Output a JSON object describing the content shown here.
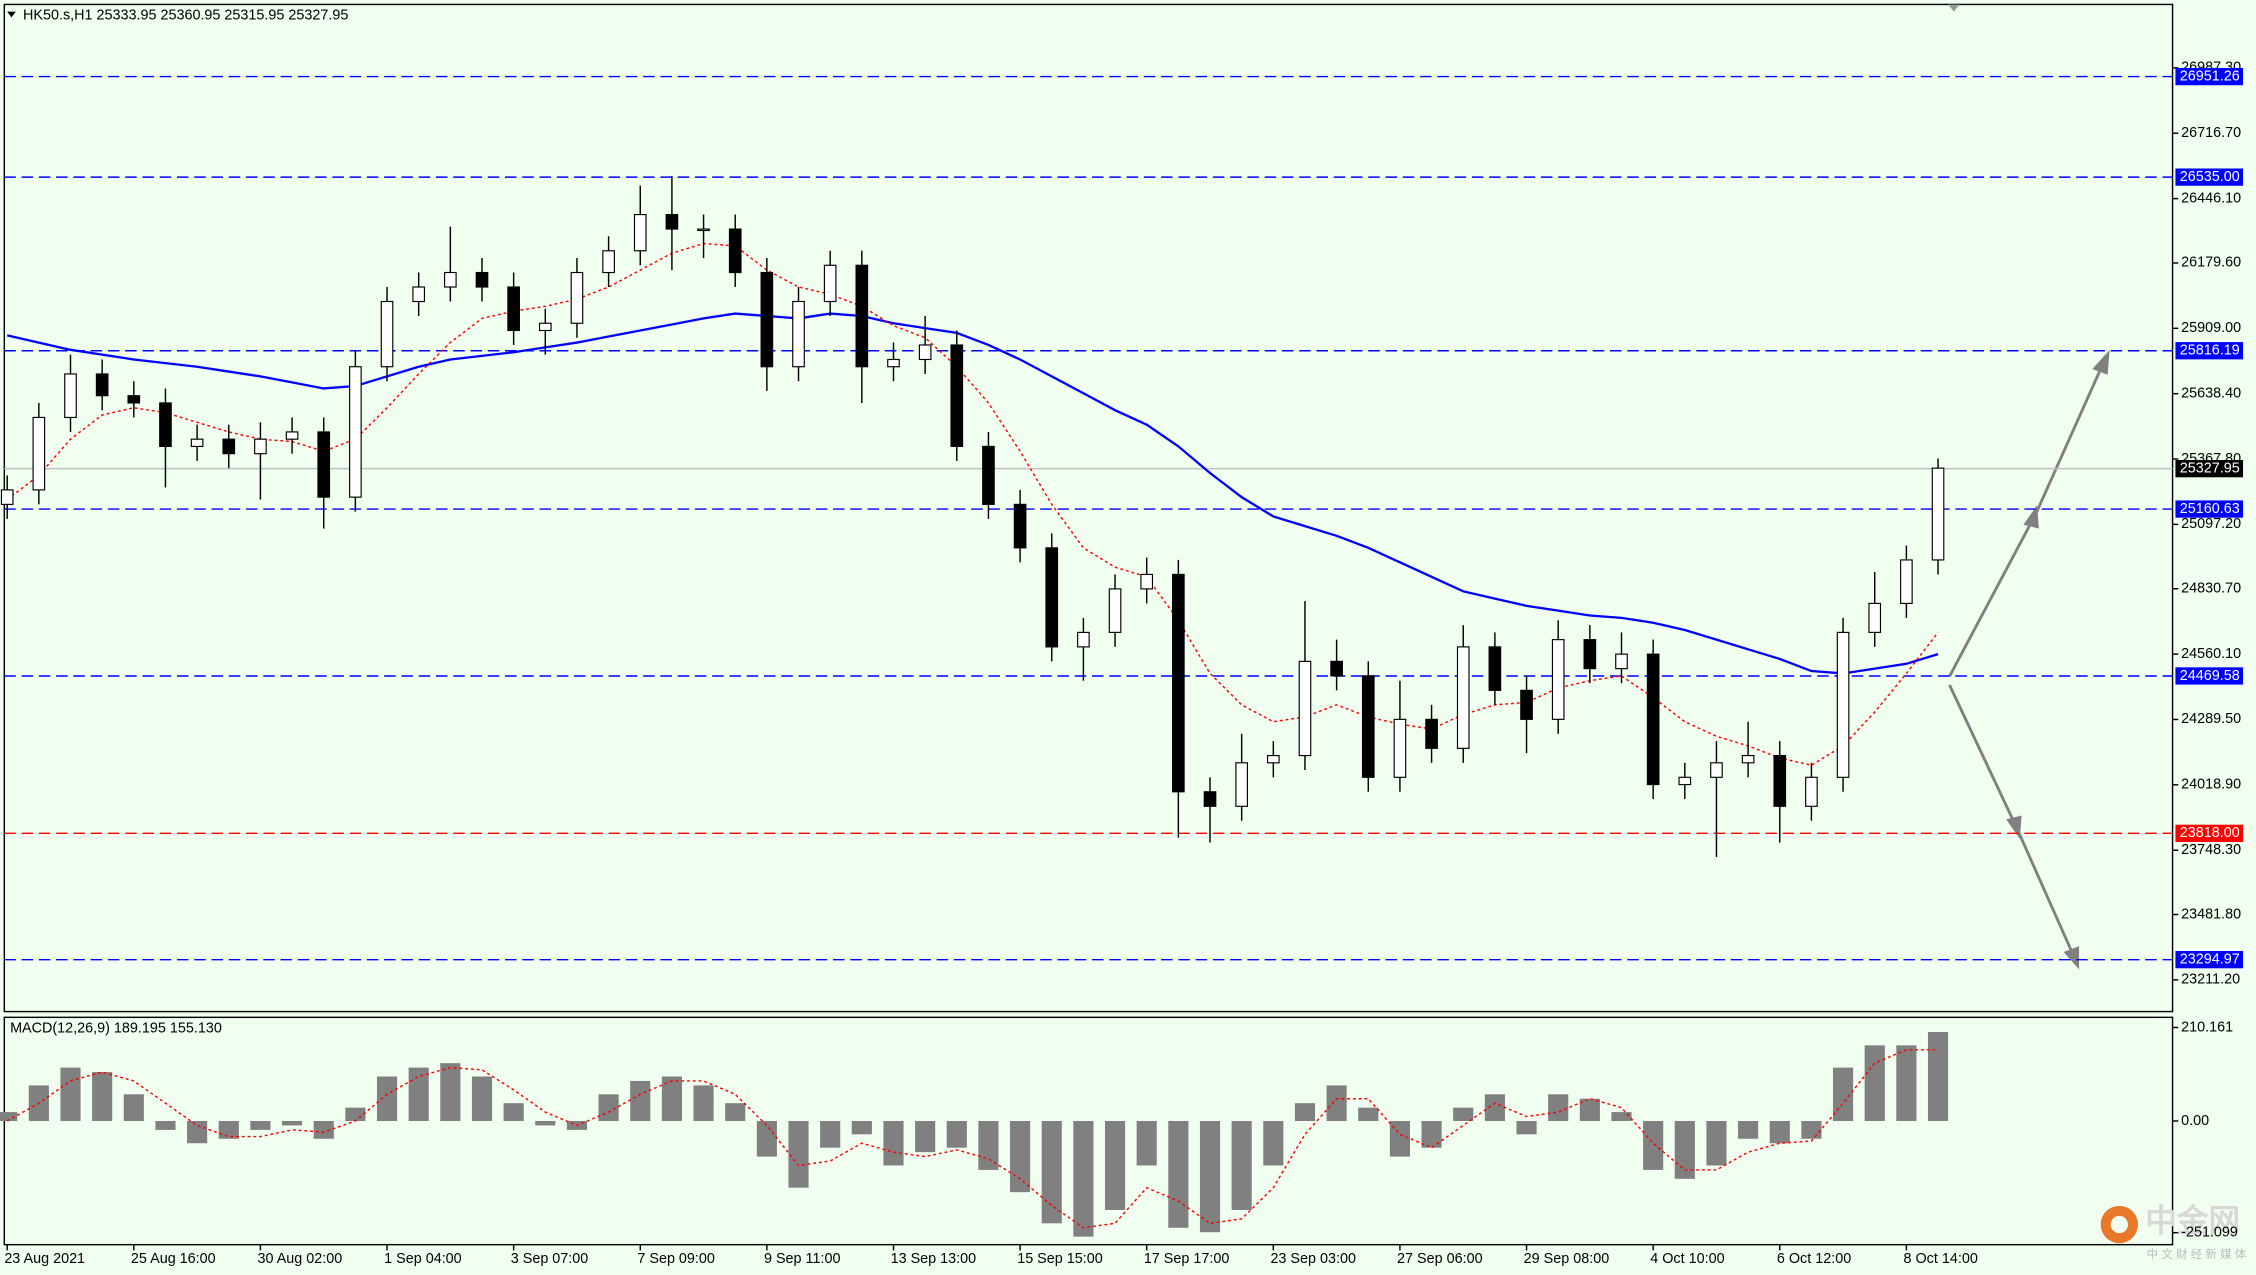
{
  "chart_data": [
    {
      "type": "candlestick",
      "title": "HK50.s,H1  25333.95 25360.95 25315.95 25327.95",
      "categories": [
        "23 Aug 2021",
        null,
        null,
        null,
        "25 Aug 16:00",
        null,
        null,
        null,
        "30 Aug 02:00",
        null,
        null,
        null,
        "1 Sep 04:00",
        null,
        null,
        null,
        "3 Sep 07:00",
        null,
        null,
        null,
        "7 Sep 09:00",
        null,
        null,
        null,
        "9 Sep 11:00",
        null,
        null,
        null,
        "13 Sep 13:00",
        null,
        null,
        null,
        "15 Sep 15:00",
        null,
        null,
        null,
        "17 Sep 17:00",
        null,
        null,
        null,
        "23 Sep 03:00",
        null,
        null,
        null,
        "27 Sep 06:00",
        null,
        null,
        null,
        "29 Sep 08:00",
        null,
        null,
        null,
        "4 Oct 10:00",
        null,
        null,
        null,
        "6 Oct 12:00",
        null,
        null,
        null,
        "8 Oct 14:00",
        null
      ],
      "open": [
        25180,
        25240,
        25540,
        25720,
        25630,
        25600,
        25420,
        25450,
        25390,
        25450,
        25480,
        25210,
        25750,
        26020,
        26080,
        26140,
        26080,
        25900,
        25930,
        26140,
        26230,
        26380,
        26320,
        26320,
        26140,
        25750,
        26020,
        26170,
        25750,
        25780,
        25840,
        25420,
        25180,
        25000,
        24590,
        24650,
        24830,
        24890,
        23990,
        23930,
        24110,
        24140,
        24530,
        24470,
        24050,
        24290,
        24170,
        24590,
        24410,
        24290,
        24620,
        24500,
        24560,
        24020,
        24050,
        24110,
        24140,
        23930,
        24050,
        24650,
        24770,
        24950
      ],
      "high": [
        25300,
        25600,
        25800,
        25780,
        25690,
        25660,
        25510,
        25510,
        25520,
        25540,
        25540,
        25820,
        26080,
        26140,
        26330,
        26200,
        26140,
        25990,
        26200,
        26290,
        26500,
        26540,
        26380,
        26380,
        26200,
        26080,
        26230,
        26230,
        25850,
        25960,
        25900,
        25480,
        25240,
        25060,
        24710,
        24890,
        24960,
        24950,
        24050,
        24230,
        24200,
        24780,
        24620,
        24530,
        24450,
        24350,
        24680,
        24650,
        24470,
        24700,
        24680,
        24650,
        24620,
        24110,
        24200,
        24280,
        24200,
        24110,
        24710,
        24900,
        25010,
        25370
      ],
      "low": [
        25120,
        25180,
        25480,
        25570,
        25540,
        25250,
        25360,
        25330,
        25200,
        25390,
        25080,
        25150,
        25690,
        25960,
        26020,
        26020,
        25840,
        25800,
        25870,
        26080,
        26170,
        26150,
        26200,
        26080,
        25650,
        25690,
        25960,
        25600,
        25690,
        25720,
        25360,
        25120,
        24940,
        24530,
        24450,
        24590,
        24770,
        23800,
        23780,
        23870,
        24050,
        24080,
        24410,
        23990,
        23990,
        24110,
        24110,
        24350,
        24150,
        24230,
        24440,
        24440,
        23960,
        23960,
        23720,
        24050,
        23780,
        23870,
        23990,
        24590,
        24710,
        24890
      ],
      "close": [
        25240,
        25540,
        25720,
        25630,
        25600,
        25420,
        25450,
        25390,
        25450,
        25480,
        25210,
        25750,
        26020,
        26080,
        26140,
        26080,
        25900,
        25930,
        26140,
        26230,
        26380,
        26320,
        26320,
        26140,
        25750,
        26020,
        26170,
        25750,
        25780,
        25840,
        25420,
        25180,
        25000,
        24590,
        24650,
        24830,
        24890,
        23990,
        23930,
        24110,
        24140,
        24530,
        24470,
        24050,
        24290,
        24170,
        24590,
        24410,
        24290,
        24620,
        24500,
        24560,
        24020,
        24050,
        24110,
        24140,
        23930,
        24050,
        24650,
        24770,
        24950,
        25330
      ],
      "lines": [
        {
          "color": "#0000ff",
          "values": [
            25880,
            25850,
            25820,
            25800,
            25780,
            25765,
            25750,
            25730,
            25710,
            25685,
            25660,
            25670,
            25710,
            25750,
            25780,
            25795,
            25810,
            25830,
            25850,
            25875,
            25900,
            25925,
            25950,
            25970,
            25960,
            25950,
            25970,
            25960,
            25930,
            25910,
            25890,
            25840,
            25780,
            25710,
            25640,
            25570,
            25510,
            25420,
            25310,
            25210,
            25130,
            25090,
            25050,
            25000,
            24940,
            24880,
            24820,
            24790,
            24760,
            24740,
            24720,
            24710,
            24690,
            24660,
            24620,
            24580,
            24540,
            24490,
            24480,
            24500,
            24520,
            24560
          ]
        },
        {
          "color": "#ff0000",
          "dashed": true,
          "values": [
            25200,
            25300,
            25450,
            25550,
            25580,
            25560,
            25520,
            25480,
            25450,
            25440,
            25400,
            25450,
            25580,
            25720,
            25850,
            25950,
            25980,
            26000,
            26030,
            26080,
            26150,
            26220,
            26260,
            26250,
            26150,
            26080,
            26050,
            26000,
            25920,
            25870,
            25750,
            25600,
            25400,
            25180,
            25000,
            24920,
            24880,
            24700,
            24480,
            24350,
            24280,
            24300,
            24350,
            24300,
            24270,
            24250,
            24310,
            24350,
            24360,
            24420,
            24450,
            24470,
            24380,
            24280,
            24220,
            24180,
            24130,
            24100,
            24180,
            24320,
            24480,
            24650
          ]
        }
      ],
      "levels": [
        {
          "price": 26951.26,
          "color": "#0000ff"
        },
        {
          "price": 26535,
          "label": "26535.00",
          "color": "#0000ff"
        },
        {
          "price": 25816.19,
          "color": "#0000ff"
        },
        {
          "price": 25160.63,
          "color": "#0000ff"
        },
        {
          "price": 24469.58,
          "color": "#0000ff"
        },
        {
          "price": 23818,
          "label": "23818.00",
          "color": "#ff0000"
        },
        {
          "price": 23294.97,
          "color": "#0000ff"
        }
      ],
      "last": 25327.95,
      "ylim": [
        23080,
        27250
      ],
      "yticks": [
        {
          "value": 26987.3,
          "label": "26987.30"
        },
        {
          "value": 26716.7,
          "label": "26716.70"
        },
        {
          "value": 26446.1,
          "label": "26446.10"
        },
        {
          "value": 26179.6,
          "label": "26179.60"
        },
        {
          "value": 25909,
          "label": "25909.00"
        },
        {
          "value": 25638.4,
          "label": "25638.40"
        },
        {
          "value": 25367.8,
          "label": "25367.80"
        },
        {
          "value": 25097.2,
          "label": "25097.20"
        },
        {
          "value": 24830.7,
          "label": "24830.70"
        },
        {
          "value": 24560.1,
          "label": "24560.10"
        },
        {
          "value": 24289.5,
          "label": "24289.50"
        },
        {
          "value": 24018.9,
          "label": "24018.90"
        },
        {
          "value": 23748.3,
          "label": "23748.30"
        },
        {
          "value": 23481.8,
          "label": "23481.80"
        },
        {
          "value": 23211.2,
          "label": "23211.20"
        }
      ]
    },
    {
      "type": "macd",
      "title": "MACD(12,26,9) 189.195 155.130",
      "histogram": {
        "color": "#808080",
        "values": [
          20,
          80,
          120,
          110,
          60,
          -20,
          -50,
          -40,
          -20,
          -10,
          -40,
          30,
          100,
          120,
          130,
          100,
          40,
          -10,
          -20,
          60,
          90,
          100,
          80,
          40,
          -80,
          -150,
          -60,
          -30,
          -100,
          -70,
          -60,
          -110,
          -160,
          -230,
          -260,
          -200,
          -100,
          -240,
          -250,
          -200,
          -100,
          40,
          80,
          30,
          -80,
          -60,
          30,
          60,
          -30,
          60,
          50,
          20,
          -110,
          -130,
          -100,
          -40,
          -50,
          -40,
          120,
          170,
          170,
          200
        ]
      },
      "signal": {
        "color": "#ff0000",
        "values": [
          0,
          40,
          90,
          110,
          90,
          40,
          -10,
          -35,
          -35,
          -20,
          -25,
          0,
          60,
          100,
          120,
          115,
          70,
          20,
          -10,
          20,
          60,
          90,
          90,
          60,
          -10,
          -100,
          -90,
          -50,
          -70,
          -80,
          -65,
          -85,
          -130,
          -190,
          -240,
          -230,
          -150,
          -180,
          -230,
          -220,
          -150,
          -30,
          50,
          50,
          -30,
          -60,
          -10,
          40,
          10,
          20,
          50,
          30,
          -50,
          -110,
          -110,
          -70,
          -50,
          -45,
          40,
          130,
          160,
          160
        ]
      },
      "ylim": [
        -278,
        233
      ],
      "yticks": [
        210.161,
        {
          "value": 0,
          "label": "0.00"
        },
        -251.099
      ]
    }
  ],
  "watermark": "中金网",
  "watermark_sub": "中 文 财 经 新 媒 体"
}
